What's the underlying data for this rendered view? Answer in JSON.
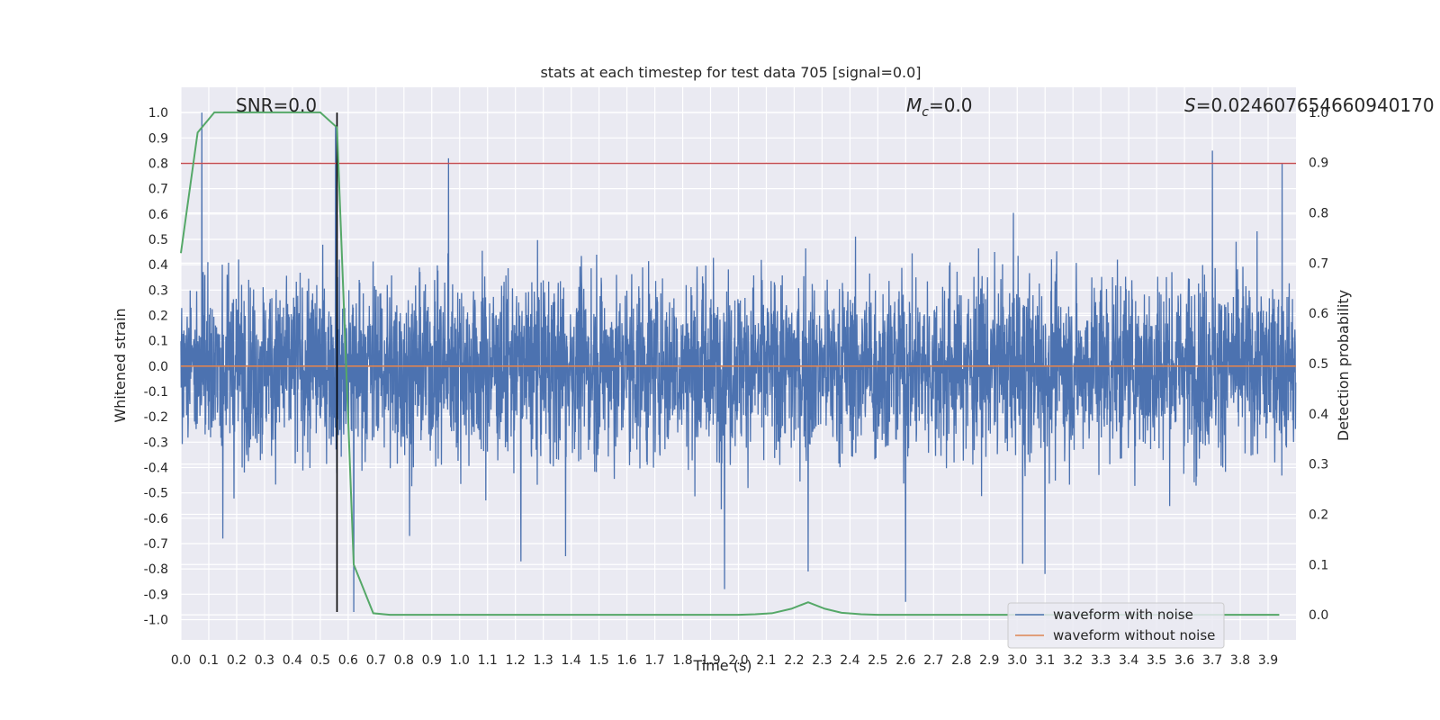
{
  "chart_data": {
    "type": "line",
    "title": "stats at each timestep for test data 705 [signal=0.0]",
    "xlabel": "Time (s)",
    "ylabel": "Whitened strain",
    "ylabel_right": "Detection probability",
    "xlim": [
      0.0,
      4.0
    ],
    "ylim": [
      -1.08,
      1.1
    ],
    "ylim_right": [
      -0.05,
      1.05
    ],
    "x_ticks": [
      "0.0",
      "0.1",
      "0.2",
      "0.3",
      "0.4",
      "0.5",
      "0.6",
      "0.7",
      "0.8",
      "0.9",
      "1.0",
      "1.1",
      "1.2",
      "1.3",
      "1.4",
      "1.5",
      "1.6",
      "1.7",
      "1.8",
      "1.9",
      "2.0",
      "2.1",
      "2.2",
      "2.3",
      "2.4",
      "2.5",
      "2.6",
      "2.7",
      "2.8",
      "2.9",
      "3.0",
      "3.1",
      "3.2",
      "3.3",
      "3.4",
      "3.5",
      "3.6",
      "3.7",
      "3.8",
      "3.9"
    ],
    "y_ticks": [
      "-1.0",
      "-0.9",
      "-0.8",
      "-0.7",
      "-0.6",
      "-0.5",
      "-0.4",
      "-0.3",
      "-0.2",
      "-0.1",
      "0.0",
      "0.1",
      "0.2",
      "0.3",
      "0.4",
      "0.5",
      "0.6",
      "0.7",
      "0.8",
      "0.9",
      "1.0"
    ],
    "y_ticks_right": [
      "0.0",
      "0.1",
      "0.2",
      "0.3",
      "0.4",
      "0.5",
      "0.6",
      "0.7",
      "0.8",
      "0.9",
      "1.0"
    ],
    "annotations": {
      "snr": "SNR=0.0",
      "mc_symbol": "M",
      "mc_subscript": "c",
      "mc_value": "=0.0",
      "s_symbol": "S",
      "s_value": "=0.024607654660940170"
    },
    "legend": {
      "position": "lower right",
      "entries": [
        {
          "label": "waveform with noise",
          "color": "#4c72b0"
        },
        {
          "label": "waveform without noise",
          "color": "#dd8452"
        }
      ]
    },
    "series": [
      {
        "name": "waveform with noise",
        "axis": "left",
        "color": "#4c72b0",
        "noise": {
          "duration": 4.0,
          "samples": 4096,
          "typical_amplitude": 0.25,
          "min": -0.97,
          "max": 1.0
        },
        "spikes": [
          [
            0.075,
            1.0
          ],
          [
            0.555,
            0.95
          ],
          [
            0.96,
            0.82
          ],
          [
            3.7,
            0.85
          ],
          [
            3.95,
            0.8
          ],
          [
            0.62,
            -0.97
          ],
          [
            1.95,
            -0.88
          ],
          [
            2.6,
            -0.93
          ],
          [
            3.1,
            -0.82
          ],
          [
            3.02,
            -0.78
          ],
          [
            2.25,
            -0.81
          ],
          [
            0.15,
            -0.68
          ],
          [
            0.82,
            -0.67
          ],
          [
            1.22,
            -0.77
          ],
          [
            1.38,
            -0.75
          ]
        ]
      },
      {
        "name": "waveform without noise",
        "axis": "left",
        "color": "#dd8452",
        "x": [
          0.0,
          4.0
        ],
        "y": [
          0.0,
          0.0
        ]
      },
      {
        "name": "detection probability",
        "axis": "right",
        "color": "#55a868",
        "x": [
          0.0,
          0.06,
          0.12,
          0.19,
          0.25,
          0.31,
          0.37,
          0.44,
          0.5,
          0.56,
          0.62,
          0.69,
          0.75,
          0.81,
          1.0,
          1.5,
          2.0,
          2.06,
          2.12,
          2.19,
          2.25,
          2.31,
          2.37,
          2.44,
          2.5,
          3.0,
          3.5,
          3.94
        ],
        "y": [
          0.72,
          0.96,
          1.0,
          1.0,
          1.0,
          1.0,
          1.0,
          1.0,
          1.0,
          0.97,
          0.1,
          0.003,
          0.0,
          0.0,
          0.0,
          0.0,
          0.0,
          0.001,
          0.003,
          0.012,
          0.025,
          0.012,
          0.004,
          0.001,
          0.0,
          0.0,
          0.0,
          0.0
        ]
      }
    ],
    "hlines": [
      {
        "name": "threshold",
        "axis": "left",
        "y": 0.8,
        "color": "#c44e52"
      }
    ],
    "vlines": [
      {
        "name": "marker",
        "x": 0.56,
        "y_range": [
          -0.97,
          1.0
        ],
        "color": "#000000"
      }
    ]
  }
}
